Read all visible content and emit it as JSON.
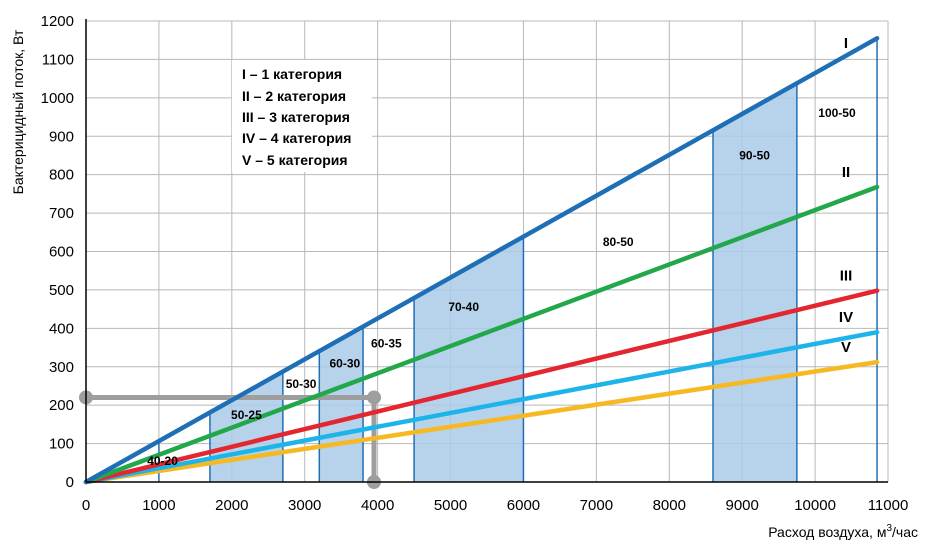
{
  "chart_data": {
    "type": "line",
    "x_range": [
      0,
      11000
    ],
    "y_range": [
      0,
      1200
    ],
    "x_ticks": [
      0,
      1000,
      2000,
      3000,
      4000,
      5000,
      6000,
      7000,
      8000,
      9000,
      10000,
      11000
    ],
    "y_ticks": [
      0,
      100,
      200,
      300,
      400,
      500,
      600,
      700,
      800,
      900,
      1000,
      1100,
      1200
    ],
    "xlabel_prefix": "Расход воздуха, м",
    "xlabel_sup": "3",
    "xlabel_suffix": "/час",
    "ylabel": "Бактерицидный поток, Вт",
    "grid": true,
    "series": [
      {
        "name": "I",
        "color": "#1f6fb7",
        "x": [
          0,
          10850
        ],
        "y": [
          0,
          1155
        ]
      },
      {
        "name": "II",
        "color": "#22a84a",
        "x": [
          0,
          10850
        ],
        "y": [
          0,
          768
        ]
      },
      {
        "name": "III",
        "color": "#e3262f",
        "x": [
          0,
          10850
        ],
        "y": [
          0,
          498
        ]
      },
      {
        "name": "IV",
        "color": "#1db4ea",
        "x": [
          0,
          10850
        ],
        "y": [
          0,
          390
        ]
      },
      {
        "name": "V",
        "color": "#f7b923",
        "x": [
          0,
          10850
        ],
        "y": [
          0,
          312
        ]
      }
    ],
    "legend": [
      "I – 1 категория",
      "II – 2 категория",
      "III – 3 категория",
      "IV – 4 категория",
      "V – 5 категория"
    ],
    "bands": [
      {
        "x0": 1700,
        "x1": 2700,
        "shaded": true
      },
      {
        "x0": 3200,
        "x1": 3800,
        "shaded": true
      },
      {
        "x0": 4500,
        "x1": 6000,
        "shaded": true
      },
      {
        "x0": 8600,
        "x1": 9750,
        "shaded": true
      }
    ],
    "dividers": [
      1000,
      1700,
      2700,
      3200,
      3800,
      4500,
      6000,
      8600,
      9750,
      10850
    ],
    "region_labels": [
      {
        "text": "40-20",
        "x": 1050,
        "y": 55
      },
      {
        "text": "50-25",
        "x": 2200,
        "y": 175
      },
      {
        "text": "50-30",
        "x": 2950,
        "y": 255
      },
      {
        "text": "60-30",
        "x": 3550,
        "y": 308
      },
      {
        "text": "60-35",
        "x": 4120,
        "y": 360
      },
      {
        "text": "70-40",
        "x": 5180,
        "y": 455
      },
      {
        "text": "80-50",
        "x": 7300,
        "y": 625
      },
      {
        "text": "90-50",
        "x": 9170,
        "y": 850
      },
      {
        "text": "100-50",
        "x": 10300,
        "y": 960
      }
    ],
    "marker": {
      "x0": 0,
      "y": 220,
      "x1": 3950,
      "y_end": 0,
      "color": "#9e9e9e"
    }
  }
}
